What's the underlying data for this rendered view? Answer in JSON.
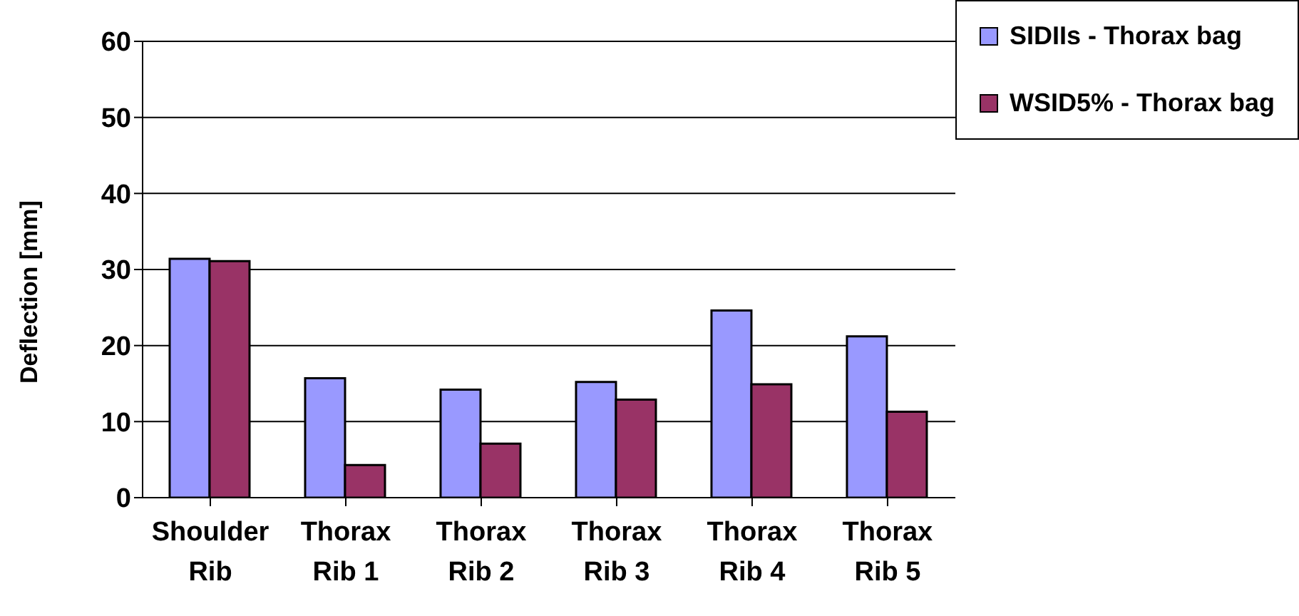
{
  "chart_data": {
    "type": "bar",
    "ylabel": "Deflection [mm]",
    "categories": [
      "Shoulder Rib",
      "Thorax Rib 1",
      "Thorax Rib 2",
      "Thorax Rib 3",
      "Thorax Rib 4",
      "Thorax Rib 5"
    ],
    "series": [
      {
        "name": "SIDIIs - Thorax bag",
        "color": "#9999ff",
        "values": [
          31.4,
          15.7,
          14.2,
          15.2,
          24.6,
          21.2
        ]
      },
      {
        "name": "WSID5% - Thorax bag",
        "color": "#993366",
        "values": [
          31.1,
          4.3,
          7.1,
          12.9,
          14.9,
          11.3
        ]
      }
    ],
    "ylim": [
      0,
      60
    ],
    "yticks": [
      0,
      10,
      20,
      30,
      40,
      50,
      60
    ],
    "grid": "y",
    "legend": "top right"
  }
}
